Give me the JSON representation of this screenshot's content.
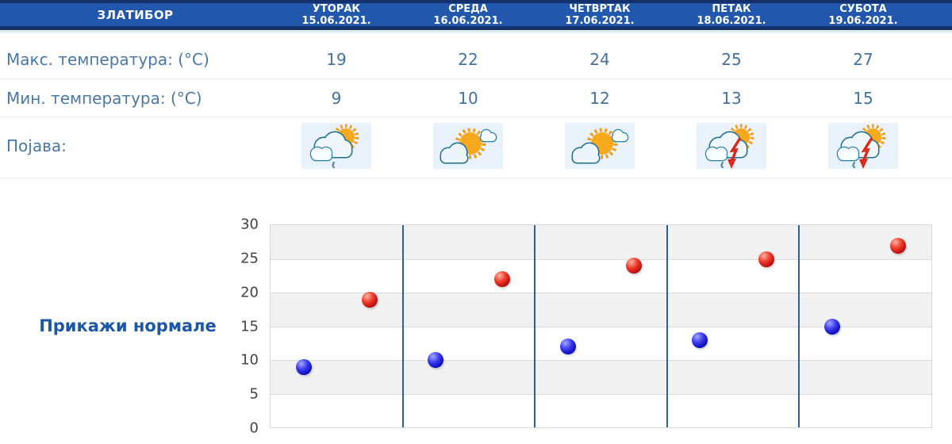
{
  "location": "ЗЛАТИБОР",
  "table": {
    "max_label": "Макс. температура: (°C)",
    "min_label": "Мин. температура: (°C)",
    "phenomenon_label": "Појава:"
  },
  "days": [
    {
      "name": "УТОРАК",
      "date": "15.06.2021.",
      "max": "19",
      "min": "9",
      "icon": "sun-clouds-light-rain-icon"
    },
    {
      "name": "СРЕДА",
      "date": "16.06.2021.",
      "max": "22",
      "min": "10",
      "icon": "partly-sunny-icon"
    },
    {
      "name": "ЧЕТВРТАК",
      "date": "17.06.2021.",
      "max": "24",
      "min": "12",
      "icon": "partly-sunny-icon"
    },
    {
      "name": "ПЕТАК",
      "date": "18.06.2021.",
      "max": "25",
      "min": "13",
      "icon": "thunderstorm-sun-icon"
    },
    {
      "name": "СУБОТА",
      "date": "19.06.2021.",
      "max": "27",
      "min": "15",
      "icon": "thunderstorm-sun-icon"
    }
  ],
  "normals_link": "Прикажи нормале",
  "chart_data": {
    "type": "scatter",
    "title": "",
    "xlabel": "",
    "ylabel": "",
    "categories": [
      "УТОРАК 15.06.2021.",
      "СРЕДА 16.06.2021.",
      "ЧЕТВРТАК 17.06.2021.",
      "ПЕТАК 18.06.2021.",
      "СУБОТА 19.06.2021."
    ],
    "series": [
      {
        "key": "max",
        "name": "Макс. температура (°C)",
        "color": "#cc1616",
        "x_offset_within_day": 0.75,
        "values": [
          19,
          22,
          24,
          25,
          27
        ]
      },
      {
        "key": "min",
        "name": "Мин. температура (°C)",
        "color": "#1616cc",
        "x_offset_within_day": 0.25,
        "values": [
          9,
          10,
          12,
          13,
          15
        ]
      }
    ],
    "ylim": [
      0,
      30
    ],
    "yticks": [
      30,
      25,
      20,
      15,
      10,
      5,
      0
    ],
    "grid": true,
    "band_fill": "alternating #f1f1f1 / #ffffff every 5 °C, gray band at top",
    "day_separator_color": "#2f6090",
    "legend_position": "none"
  },
  "colors": {
    "header_bg": "#2157ac",
    "header_edge": "#14316b",
    "header_text": "#ffffff",
    "body_text": "#4a77a6",
    "link_text": "#1d57a8",
    "max_point": "#cc1616",
    "min_point": "#1616cc",
    "day_separator": "#2f6090",
    "band_gray": "#f1f1f1",
    "tick_text": "#444444",
    "icon_tile_bg": "#e9f2fa"
  }
}
